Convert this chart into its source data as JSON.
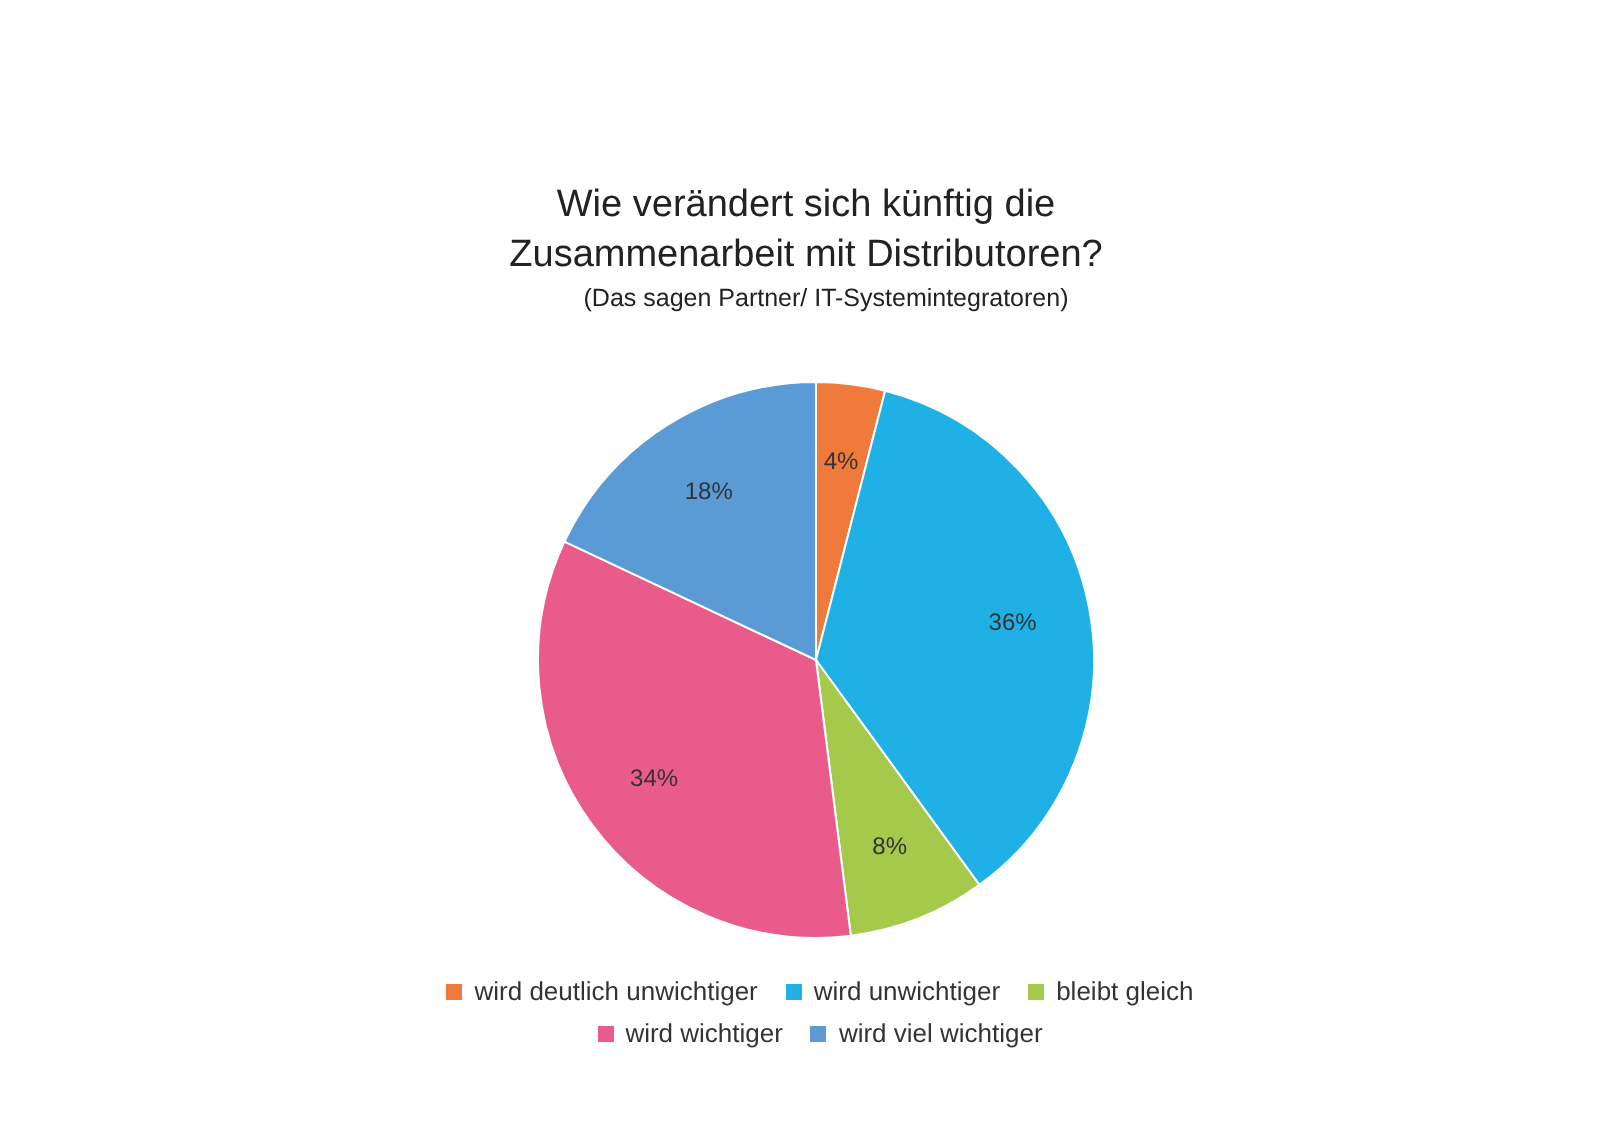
{
  "chart_data": {
    "type": "pie",
    "title": "Wie verändert sich künftig die Zusammenarbeit mit Distributoren?",
    "subtitle": "(Das sagen Partner/ IT-Systemintegratoren)",
    "categories": [
      "wird deutlich unwichtiger",
      "wird unwichtiger",
      "bleibt gleich",
      "wird wichtiger",
      "wird viel wichtiger"
    ],
    "values": [
      4,
      36,
      8,
      34,
      18
    ],
    "value_labels": [
      "4%",
      "36%",
      "8%",
      "34%",
      "18%"
    ],
    "colors": [
      "#f07a3c",
      "#1fb1e6",
      "#a5c94b",
      "#e95b8a",
      "#5b9bd5"
    ],
    "legend": "bottom"
  }
}
